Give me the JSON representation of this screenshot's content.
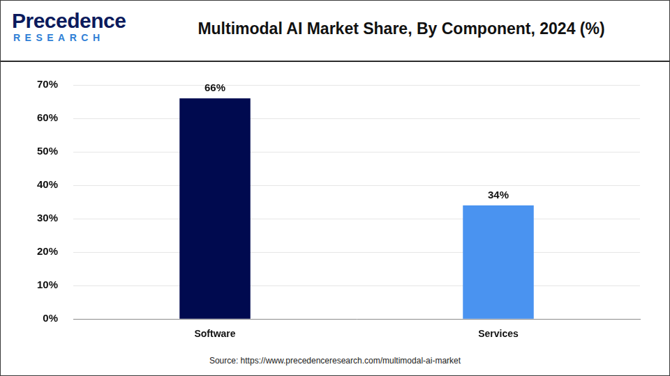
{
  "chart_data": {
    "type": "bar",
    "title": "Multimodal AI Market Share, By Component, 2024 (%)",
    "logo": {
      "name": "Precedence",
      "tagline": "RESEARCH"
    },
    "source": "Source: https://www.precedenceresearch.com/multimodal-ai-market",
    "categories": [
      "Software",
      "Services"
    ],
    "values": [
      66,
      34
    ],
    "value_labels": [
      "66%",
      "34%"
    ],
    "colors": [
      "#000a4f",
      "#4a93f0"
    ],
    "ylim": [
      0,
      70
    ],
    "yticks": [
      {
        "value": 0,
        "label": "0%"
      },
      {
        "value": 10,
        "label": "10%"
      },
      {
        "value": 20,
        "label": "20%"
      },
      {
        "value": 30,
        "label": "30%"
      },
      {
        "value": 40,
        "label": "40%"
      },
      {
        "value": 50,
        "label": "50%"
      },
      {
        "value": 60,
        "label": "60%"
      },
      {
        "value": 70,
        "label": "70%"
      }
    ],
    "grid": true,
    "data_labels": true
  }
}
